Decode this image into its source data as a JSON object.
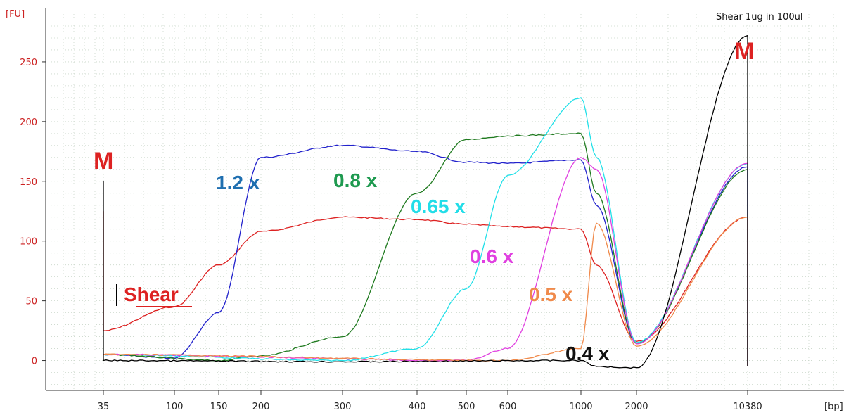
{
  "chart_data": {
    "type": "line",
    "title": "Shear 1ug in 100ul",
    "y_unit": "[FU]",
    "x_unit": "[bp]",
    "ylim": [
      -25,
      290
    ],
    "y_ticks": [
      0,
      50,
      100,
      150,
      200,
      250
    ],
    "y_tick_labels": [
      "0",
      "50",
      "100",
      "150",
      "200",
      "250"
    ],
    "x_tick_labels": [
      "35",
      "100",
      "150",
      "200",
      "300",
      "400",
      "500",
      "600",
      "1000",
      "2000",
      "10380"
    ],
    "grid": true,
    "markers": [
      {
        "text": "M",
        "x": "35",
        "color": "#dd2222"
      },
      {
        "text": "M",
        "x": "10380",
        "color": "#dd2222"
      }
    ],
    "colors": {
      "shear": "#dd2222",
      "x1_2": "#2222cc",
      "x0_8": "#1f7a1f",
      "x0_65": "#22e0e8",
      "x0_6": "#e040e0",
      "x0_5": "#f08a4b",
      "x0_4": "#000000"
    },
    "series": [
      {
        "key": "shear",
        "name": "Shear",
        "label_color": "#dd2222",
        "underline": true,
        "points": [
          [
            "35",
            125
          ],
          [
            "35",
            25
          ],
          [
            "100",
            45
          ],
          [
            "150",
            80
          ],
          [
            "200",
            108
          ],
          [
            "300",
            120
          ],
          [
            "400",
            118
          ],
          [
            "500",
            114
          ],
          [
            "600",
            112
          ],
          [
            "1000",
            110
          ],
          [
            "1200",
            80
          ],
          [
            "2000",
            16
          ],
          [
            "10380",
            120
          ],
          [
            "10380",
            -5
          ]
        ]
      },
      {
        "key": "x1_2",
        "name": "1.2 x",
        "label_color": "#1f6fb0",
        "points": [
          [
            "35",
            5
          ],
          [
            "100",
            2
          ],
          [
            "150",
            40
          ],
          [
            "200",
            170
          ],
          [
            "300",
            180
          ],
          [
            "400",
            175
          ],
          [
            "500",
            166
          ],
          [
            "600",
            165
          ],
          [
            "1000",
            168
          ],
          [
            "1200",
            130
          ],
          [
            "2000",
            14
          ],
          [
            "10380",
            162
          ],
          [
            "10380",
            -5
          ]
        ]
      },
      {
        "key": "x0_8",
        "name": "0.8 x",
        "label_color": "#1f9a50",
        "points": [
          [
            "35",
            5
          ],
          [
            "150",
            0
          ],
          [
            "200",
            4
          ],
          [
            "300",
            20
          ],
          [
            "400",
            140
          ],
          [
            "500",
            185
          ],
          [
            "600",
            188
          ],
          [
            "1000",
            190
          ],
          [
            "1200",
            140
          ],
          [
            "2000",
            14
          ],
          [
            "10380",
            160
          ],
          [
            "10380",
            -5
          ]
        ]
      },
      {
        "key": "x0_65",
        "name": "0.65 x",
        "label_color": "#22dde8",
        "points": [
          [
            "35",
            5
          ],
          [
            "300",
            0
          ],
          [
            "400",
            10
          ],
          [
            "500",
            60
          ],
          [
            "600",
            155
          ],
          [
            "1000",
            220
          ],
          [
            "1200",
            170
          ],
          [
            "2000",
            15
          ],
          [
            "10380",
            165
          ],
          [
            "10380",
            -5
          ]
        ]
      },
      {
        "key": "x0_6",
        "name": "0.6 x",
        "label_color": "#e040e0",
        "points": [
          [
            "35",
            5
          ],
          [
            "500",
            0
          ],
          [
            "600",
            10
          ],
          [
            "1000",
            170
          ],
          [
            "1200",
            160
          ],
          [
            "2000",
            14
          ],
          [
            "10380",
            165
          ],
          [
            "10380",
            -5
          ]
        ]
      },
      {
        "key": "x0_5",
        "name": "0.5 x",
        "label_color": "#f08a4b",
        "points": [
          [
            "35",
            5
          ],
          [
            "600",
            0
          ],
          [
            "1000",
            10
          ],
          [
            "1200",
            115
          ],
          [
            "2000",
            12
          ],
          [
            "10380",
            120
          ],
          [
            "10380",
            -5
          ]
        ]
      },
      {
        "key": "x0_4",
        "name": "0.4 x",
        "label_color": "#111111",
        "points": [
          [
            "35",
            150
          ],
          [
            "35",
            0
          ],
          [
            "300",
            -1
          ],
          [
            "1000",
            0
          ],
          [
            "1200",
            -5
          ],
          [
            "2000",
            -6
          ],
          [
            "10380",
            272
          ],
          [
            "10380",
            -5
          ]
        ]
      }
    ]
  }
}
